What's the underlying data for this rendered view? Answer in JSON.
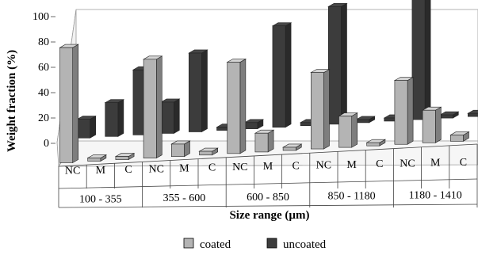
{
  "chart_data": {
    "type": "bar",
    "style": "3d-clustered",
    "xlabel": "Size range (µm)",
    "ylabel": "Weight fraction (%)",
    "ylim": [
      0,
      100
    ],
    "yticks": [
      0,
      20,
      40,
      60,
      80,
      100
    ],
    "groups": [
      "100 - 355",
      "355 - 600",
      "600 - 850",
      "850 - 1180",
      "1180 - 1410"
    ],
    "subcategories": [
      "NC",
      "M",
      "C"
    ],
    "series": [
      {
        "name": "coated",
        "color": "#b4b4b4",
        "values": [
          92,
          2,
          2,
          79,
          10,
          3,
          73,
          15,
          0,
          61,
          25,
          0,
          51,
          26,
          5
        ]
      },
      {
        "name": "uncoated",
        "color": "#3c3c3c",
        "values": [
          15,
          27,
          52,
          25,
          63,
          0,
          5,
          81,
          0,
          94,
          0,
          0,
          100,
          0,
          0
        ]
      }
    ],
    "grid": false,
    "legend_position": "bottom-center"
  }
}
